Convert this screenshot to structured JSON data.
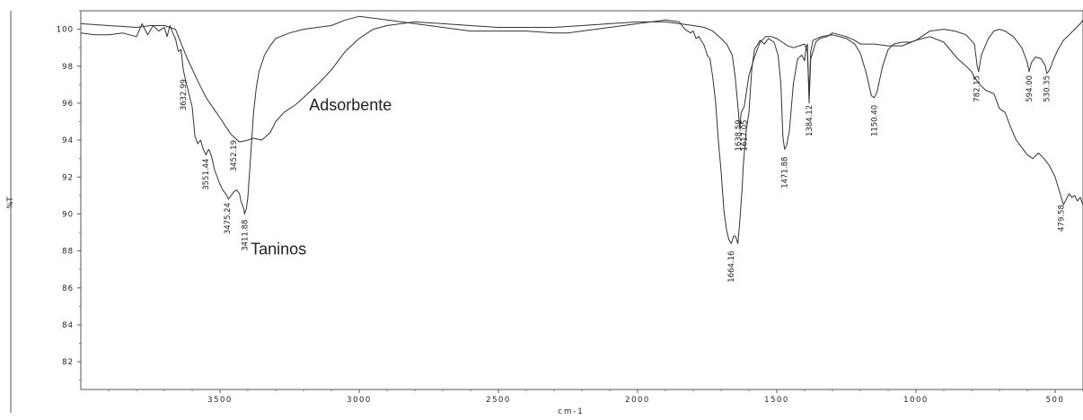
{
  "chart_data": {
    "type": "line",
    "xlabel": "cm-1",
    "ylabel": "%T",
    "xlim": [
      4000,
      400
    ],
    "ylim": [
      80.5,
      101
    ],
    "x_ticks": [
      3500,
      3000,
      2500,
      2000,
      1500,
      1000,
      500
    ],
    "y_ticks": [
      82,
      84,
      86,
      88,
      90,
      92,
      94,
      96,
      98,
      100
    ],
    "grid": false,
    "series": [
      {
        "name": "Adsorbente",
        "color": "#333333",
        "points": [
          [
            4000,
            100.3
          ],
          [
            3900,
            100.2
          ],
          [
            3800,
            100.1
          ],
          [
            3750,
            100.2
          ],
          [
            3700,
            100.2
          ],
          [
            3660,
            100.0
          ],
          [
            3620,
            98.5
          ],
          [
            3580,
            97.2
          ],
          [
            3550,
            96.3
          ],
          [
            3500,
            95.2
          ],
          [
            3460,
            94.3
          ],
          [
            3430,
            93.9
          ],
          [
            3400,
            94.0
          ],
          [
            3380,
            94.1
          ],
          [
            3350,
            94.0
          ],
          [
            3320,
            94.4
          ],
          [
            3300,
            95.0
          ],
          [
            3270,
            95.5
          ],
          [
            3230,
            95.9
          ],
          [
            3200,
            96.3
          ],
          [
            3150,
            97.0
          ],
          [
            3100,
            97.8
          ],
          [
            3050,
            98.8
          ],
          [
            3000,
            99.5
          ],
          [
            2950,
            100.0
          ],
          [
            2900,
            100.2
          ],
          [
            2800,
            100.4
          ],
          [
            2700,
            100.3
          ],
          [
            2600,
            100.2
          ],
          [
            2500,
            100.1
          ],
          [
            2300,
            100.1
          ],
          [
            2200,
            100.2
          ],
          [
            2100,
            100.3
          ],
          [
            2000,
            100.4
          ],
          [
            1900,
            100.4
          ],
          [
            1850,
            100.3
          ],
          [
            1800,
            100.2
          ],
          [
            1760,
            100.1
          ],
          [
            1730,
            99.9
          ],
          [
            1700,
            99.5
          ],
          [
            1680,
            99.2
          ],
          [
            1660,
            98.6
          ],
          [
            1650,
            97.5
          ],
          [
            1640,
            95.9
          ],
          [
            1633,
            94.6
          ],
          [
            1628,
            95.5
          ],
          [
            1617,
            95.8
          ],
          [
            1600,
            97.5
          ],
          [
            1580,
            98.5
          ],
          [
            1560,
            99.3
          ],
          [
            1540,
            99.6
          ],
          [
            1520,
            99.6
          ],
          [
            1500,
            99.5
          ],
          [
            1480,
            99.3
          ],
          [
            1460,
            99.1
          ],
          [
            1440,
            99.0
          ],
          [
            1420,
            99.1
          ],
          [
            1400,
            99.2
          ],
          [
            1390,
            98.8
          ],
          [
            1384,
            96.4
          ],
          [
            1378,
            98.8
          ],
          [
            1370,
            99.4
          ],
          [
            1340,
            99.6
          ],
          [
            1300,
            99.7
          ],
          [
            1250,
            99.5
          ],
          [
            1220,
            99.2
          ],
          [
            1200,
            98.7
          ],
          [
            1180,
            97.7
          ],
          [
            1160,
            96.4
          ],
          [
            1150,
            96.3
          ],
          [
            1140,
            96.6
          ],
          [
            1120,
            98.0
          ],
          [
            1100,
            98.9
          ],
          [
            1080,
            99.2
          ],
          [
            1050,
            99.3
          ],
          [
            1020,
            99.3
          ],
          [
            1000,
            99.4
          ],
          [
            980,
            99.6
          ],
          [
            950,
            99.9
          ],
          [
            900,
            100.0
          ],
          [
            860,
            99.9
          ],
          [
            820,
            99.7
          ],
          [
            790,
            99.2
          ],
          [
            780,
            98.0
          ],
          [
            775,
            97.7
          ],
          [
            765,
            98.6
          ],
          [
            740,
            99.5
          ],
          [
            720,
            99.9
          ],
          [
            700,
            100.0
          ],
          [
            680,
            99.9
          ],
          [
            650,
            99.6
          ],
          [
            620,
            99.0
          ],
          [
            600,
            98.2
          ],
          [
            594,
            97.7
          ],
          [
            585,
            98.2
          ],
          [
            570,
            98.5
          ],
          [
            550,
            98.4
          ],
          [
            535,
            98.0
          ],
          [
            530,
            97.6
          ],
          [
            520,
            97.8
          ],
          [
            505,
            98.4
          ],
          [
            490,
            98.9
          ],
          [
            470,
            99.4
          ],
          [
            450,
            99.7
          ],
          [
            430,
            100.0
          ],
          [
            410,
            100.3
          ],
          [
            400,
            100.5
          ]
        ]
      },
      {
        "name": "Taninos",
        "color": "#333333",
        "points": [
          [
            4000,
            99.8
          ],
          [
            3950,
            99.7
          ],
          [
            3900,
            99.7
          ],
          [
            3850,
            99.8
          ],
          [
            3800,
            99.6
          ],
          [
            3780,
            100.3
          ],
          [
            3760,
            99.7
          ],
          [
            3740,
            100.2
          ],
          [
            3720,
            99.9
          ],
          [
            3700,
            100.1
          ],
          [
            3690,
            99.6
          ],
          [
            3680,
            100.2
          ],
          [
            3670,
            99.8
          ],
          [
            3660,
            99.5
          ],
          [
            3650,
            98.8
          ],
          [
            3640,
            98.9
          ],
          [
            3632,
            97.8
          ],
          [
            3620,
            97.0
          ],
          [
            3600,
            95.8
          ],
          [
            3590,
            94.2
          ],
          [
            3580,
            93.8
          ],
          [
            3570,
            94.0
          ],
          [
            3560,
            93.5
          ],
          [
            3550,
            93.2
          ],
          [
            3545,
            93.4
          ],
          [
            3540,
            93.5
          ],
          [
            3530,
            93.1
          ],
          [
            3520,
            92.4
          ],
          [
            3500,
            91.6
          ],
          [
            3490,
            91.3
          ],
          [
            3475,
            91.0
          ],
          [
            3470,
            90.8
          ],
          [
            3450,
            91.2
          ],
          [
            3440,
            91.3
          ],
          [
            3430,
            91.1
          ],
          [
            3425,
            90.7
          ],
          [
            3415,
            90.3
          ],
          [
            3412,
            90.0
          ],
          [
            3405,
            90.3
          ],
          [
            3400,
            90.9
          ],
          [
            3390,
            93.1
          ],
          [
            3380,
            95.4
          ],
          [
            3370,
            96.8
          ],
          [
            3360,
            97.7
          ],
          [
            3340,
            98.6
          ],
          [
            3320,
            99.1
          ],
          [
            3300,
            99.5
          ],
          [
            3250,
            99.8
          ],
          [
            3200,
            100.0
          ],
          [
            3150,
            100.1
          ],
          [
            3100,
            100.2
          ],
          [
            3050,
            100.5
          ],
          [
            3000,
            100.7
          ],
          [
            2950,
            100.6
          ],
          [
            2900,
            100.5
          ],
          [
            2800,
            100.3
          ],
          [
            2700,
            100.1
          ],
          [
            2600,
            99.9
          ],
          [
            2500,
            99.9
          ],
          [
            2400,
            99.9
          ],
          [
            2300,
            99.8
          ],
          [
            2250,
            99.8
          ],
          [
            2200,
            99.9
          ],
          [
            2100,
            100.1
          ],
          [
            2000,
            100.3
          ],
          [
            1900,
            100.5
          ],
          [
            1850,
            100.4
          ],
          [
            1830,
            100.0
          ],
          [
            1810,
            99.8
          ],
          [
            1800,
            99.9
          ],
          [
            1790,
            99.5
          ],
          [
            1780,
            99.6
          ],
          [
            1760,
            99.1
          ],
          [
            1750,
            98.6
          ],
          [
            1740,
            98.4
          ],
          [
            1730,
            97.4
          ],
          [
            1720,
            96.1
          ],
          [
            1710,
            94.0
          ],
          [
            1700,
            92.3
          ],
          [
            1690,
            90.2
          ],
          [
            1680,
            89.1
          ],
          [
            1672,
            88.6
          ],
          [
            1664,
            88.4
          ],
          [
            1655,
            88.8
          ],
          [
            1648,
            88.8
          ],
          [
            1640,
            88.4
          ],
          [
            1634,
            89.4
          ],
          [
            1625,
            91.3
          ],
          [
            1620,
            92.7
          ],
          [
            1610,
            94.5
          ],
          [
            1600,
            95.5
          ],
          [
            1590,
            97.8
          ],
          [
            1580,
            98.9
          ],
          [
            1560,
            99.4
          ],
          [
            1545,
            99.2
          ],
          [
            1530,
            99.5
          ],
          [
            1510,
            99.3
          ],
          [
            1495,
            98.6
          ],
          [
            1485,
            97.0
          ],
          [
            1478,
            94.2
          ],
          [
            1472,
            93.5
          ],
          [
            1465,
            93.7
          ],
          [
            1455,
            94.5
          ],
          [
            1440,
            97.1
          ],
          [
            1425,
            98.4
          ],
          [
            1410,
            98.6
          ],
          [
            1400,
            98.3
          ],
          [
            1395,
            99.0
          ],
          [
            1390,
            99.2
          ],
          [
            1384,
            96.0
          ],
          [
            1378,
            98.4
          ],
          [
            1370,
            98.8
          ],
          [
            1360,
            99.3
          ],
          [
            1345,
            99.5
          ],
          [
            1320,
            99.6
          ],
          [
            1300,
            99.8
          ],
          [
            1250,
            99.6
          ],
          [
            1220,
            99.4
          ],
          [
            1200,
            99.2
          ],
          [
            1150,
            99.2
          ],
          [
            1100,
            99.1
          ],
          [
            1050,
            99.1
          ],
          [
            1000,
            99.4
          ],
          [
            950,
            99.6
          ],
          [
            900,
            99.3
          ],
          [
            850,
            98.4
          ],
          [
            820,
            98.0
          ],
          [
            800,
            97.7
          ],
          [
            790,
            97.4
          ],
          [
            770,
            97.0
          ],
          [
            750,
            96.7
          ],
          [
            720,
            96.5
          ],
          [
            700,
            95.7
          ],
          [
            680,
            95.5
          ],
          [
            660,
            94.7
          ],
          [
            640,
            94.0
          ],
          [
            620,
            93.6
          ],
          [
            600,
            93.2
          ],
          [
            580,
            93.0
          ],
          [
            560,
            93.3
          ],
          [
            540,
            93.0
          ],
          [
            520,
            92.6
          ],
          [
            500,
            92.0
          ],
          [
            490,
            91.5
          ],
          [
            480,
            91.0
          ],
          [
            470,
            90.5
          ],
          [
            460,
            90.8
          ],
          [
            450,
            91.1
          ],
          [
            440,
            90.9
          ],
          [
            430,
            91.0
          ],
          [
            420,
            90.7
          ],
          [
            410,
            90.9
          ],
          [
            400,
            90.5
          ]
        ]
      }
    ],
    "peak_labels": [
      {
        "text": "3632.99",
        "x": 3632,
        "y": 97.4
      },
      {
        "text": "3551.44",
        "x": 3551,
        "y": 93.1
      },
      {
        "text": "3475.24",
        "x": 3475,
        "y": 90.7
      },
      {
        "text": "3452.19",
        "x": 3452,
        "y": 94.1
      },
      {
        "text": "3411.88",
        "x": 3412,
        "y": 89.8
      },
      {
        "text": "1664.16",
        "x": 1664,
        "y": 88.1
      },
      {
        "text": "1638.59",
        "x": 1638,
        "y": 95.2
      },
      {
        "text": "1617.05",
        "x": 1617,
        "y": 95.2
      },
      {
        "text": "1471.88",
        "x": 1472,
        "y": 93.2
      },
      {
        "text": "1384.12",
        "x": 1384,
        "y": 96.0
      },
      {
        "text": "1150.40",
        "x": 1150,
        "y": 96.0
      },
      {
        "text": "782.15",
        "x": 782,
        "y": 97.6
      },
      {
        "text": "594.00",
        "x": 594,
        "y": 97.6
      },
      {
        "text": "530.35",
        "x": 530,
        "y": 97.6
      },
      {
        "text": "479.58",
        "x": 479,
        "y": 90.6
      }
    ],
    "annotations": [
      {
        "text": "Adsorbente",
        "x": 3180,
        "y": 95.6
      },
      {
        "text": "Taninos",
        "x": 3390,
        "y": 87.8
      }
    ]
  }
}
